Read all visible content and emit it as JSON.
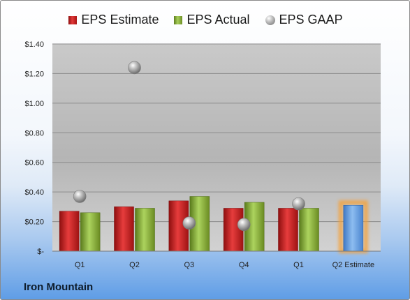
{
  "company": "Iron Mountain",
  "chart_data": {
    "type": "bar",
    "title": "",
    "xlabel": "",
    "ylabel": "",
    "categories": [
      "Q1",
      "Q2",
      "Q3",
      "Q4",
      "Q1",
      "Q2 Estimate"
    ],
    "ylim": [
      0,
      1.4
    ],
    "yticks": [
      0,
      0.2,
      0.4,
      0.6,
      0.8,
      1.0,
      1.2,
      1.4
    ],
    "ytick_labels": [
      "$-",
      "$0.20",
      "$0.40",
      "$0.60",
      "$0.80",
      "$1.00",
      "$1.20",
      "$1.40"
    ],
    "grid": true,
    "legend": "top",
    "series": [
      {
        "name": "EPS Estimate",
        "kind": "bar",
        "color": "#c81e1e",
        "values": [
          0.27,
          0.3,
          0.34,
          0.29,
          0.29,
          null
        ]
      },
      {
        "name": "EPS Actual",
        "kind": "bar",
        "color": "#8db43e",
        "values": [
          0.26,
          0.29,
          0.37,
          0.33,
          0.29,
          null
        ]
      },
      {
        "name": "EPS GAAP",
        "kind": "marker",
        "color": "#a0a0a0",
        "values": [
          0.37,
          1.24,
          0.19,
          0.18,
          0.32,
          null
        ]
      },
      {
        "name": "Q2 Estimate",
        "kind": "bar",
        "color": "#5b9be0",
        "highlight": "#f5a23a",
        "values": [
          null,
          null,
          null,
          null,
          null,
          0.31
        ]
      }
    ]
  }
}
